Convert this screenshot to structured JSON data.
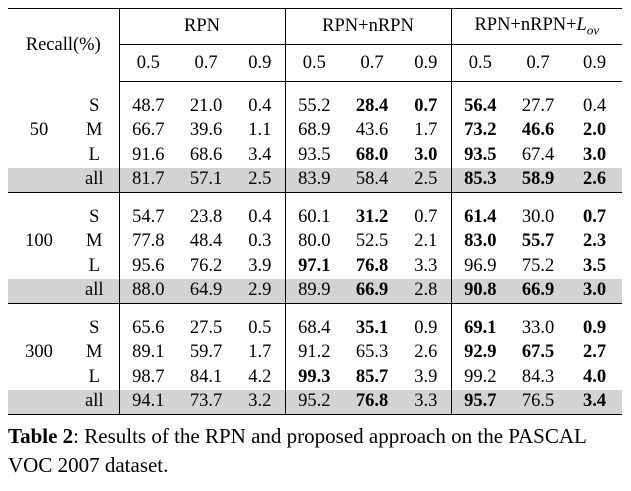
{
  "header": {
    "recall_label": "Recall(%)",
    "groups": [
      "RPN",
      "RPN+nRPN",
      "RPN+nRPN+"
    ],
    "loss_symbol": "L",
    "loss_subscript": "ov",
    "thresholds": [
      "0.5",
      "0.7",
      "0.9",
      "0.5",
      "0.7",
      "0.9",
      "0.5",
      "0.7",
      "0.9"
    ]
  },
  "blocks": [
    {
      "label": "50",
      "rows": [
        {
          "size": "S",
          "values": [
            "48.7",
            "21.0",
            "0.4",
            "55.2",
            "28.4",
            "0.7",
            "56.4",
            "27.7",
            "0.4"
          ],
          "bold": [
            false,
            false,
            false,
            false,
            true,
            true,
            true,
            false,
            false
          ]
        },
        {
          "size": "M",
          "values": [
            "66.7",
            "39.6",
            "1.1",
            "68.9",
            "43.6",
            "1.7",
            "73.2",
            "46.6",
            "2.0"
          ],
          "bold": [
            false,
            false,
            false,
            false,
            false,
            false,
            true,
            true,
            true
          ]
        },
        {
          "size": "L",
          "values": [
            "91.6",
            "68.6",
            "3.4",
            "93.5",
            "68.0",
            "3.0",
            "93.5",
            "67.4",
            "3.0"
          ],
          "bold": [
            false,
            false,
            false,
            false,
            true,
            true,
            true,
            false,
            true
          ]
        },
        {
          "size": "all",
          "values": [
            "81.7",
            "57.1",
            "2.5",
            "83.9",
            "58.4",
            "2.5",
            "85.3",
            "58.9",
            "2.6"
          ],
          "bold": [
            false,
            false,
            false,
            false,
            false,
            false,
            true,
            true,
            true
          ]
        }
      ]
    },
    {
      "label": "100",
      "rows": [
        {
          "size": "S",
          "values": [
            "54.7",
            "23.8",
            "0.4",
            "60.1",
            "31.2",
            "0.7",
            "61.4",
            "30.0",
            "0.7"
          ],
          "bold": [
            false,
            false,
            false,
            false,
            true,
            false,
            true,
            false,
            true
          ]
        },
        {
          "size": "M",
          "values": [
            "77.8",
            "48.4",
            "0.3",
            "80.0",
            "52.5",
            "2.1",
            "83.0",
            "55.7",
            "2.3"
          ],
          "bold": [
            false,
            false,
            false,
            false,
            false,
            false,
            true,
            true,
            true
          ]
        },
        {
          "size": "L",
          "values": [
            "95.6",
            "76.2",
            "3.9",
            "97.1",
            "76.8",
            "3.3",
            "96.9",
            "75.2",
            "3.5"
          ],
          "bold": [
            false,
            false,
            false,
            true,
            true,
            false,
            false,
            false,
            true
          ]
        },
        {
          "size": "all",
          "values": [
            "88.0",
            "64.9",
            "2.9",
            "89.9",
            "66.9",
            "2.8",
            "90.8",
            "66.9",
            "3.0"
          ],
          "bold": [
            false,
            false,
            false,
            false,
            true,
            false,
            true,
            true,
            true
          ]
        }
      ]
    },
    {
      "label": "300",
      "rows": [
        {
          "size": "S",
          "values": [
            "65.6",
            "27.5",
            "0.5",
            "68.4",
            "35.1",
            "0.9",
            "69.1",
            "33.0",
            "0.9"
          ],
          "bold": [
            false,
            false,
            false,
            false,
            true,
            false,
            true,
            false,
            true
          ]
        },
        {
          "size": "M",
          "values": [
            "89.1",
            "59.7",
            "1.7",
            "91.2",
            "65.3",
            "2.6",
            "92.9",
            "67.5",
            "2.7"
          ],
          "bold": [
            false,
            false,
            false,
            false,
            false,
            false,
            true,
            true,
            true
          ]
        },
        {
          "size": "L",
          "values": [
            "98.7",
            "84.1",
            "4.2",
            "99.3",
            "85.7",
            "3.9",
            "99.2",
            "84.3",
            "4.0"
          ],
          "bold": [
            false,
            false,
            false,
            true,
            true,
            false,
            false,
            false,
            true
          ]
        },
        {
          "size": "all",
          "values": [
            "94.1",
            "73.7",
            "3.2",
            "95.2",
            "76.8",
            "3.3",
            "95.7",
            "76.5",
            "3.4"
          ],
          "bold": [
            false,
            false,
            false,
            false,
            true,
            false,
            true,
            false,
            true
          ]
        }
      ]
    }
  ],
  "caption": {
    "label": "Table 2",
    "text": ": Results of the RPN and proposed approach on the PASCAL VOC 2007 dataset."
  }
}
